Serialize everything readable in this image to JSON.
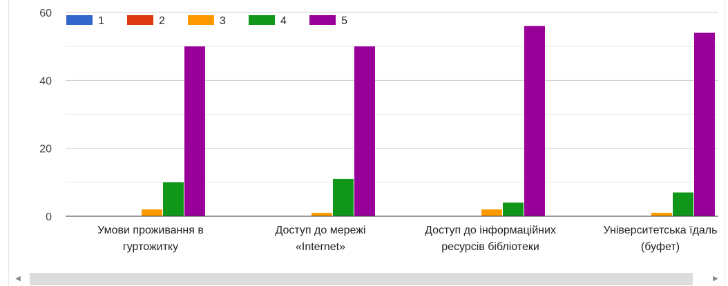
{
  "chart_data": {
    "type": "bar",
    "categories": [
      [
        "Умови проживання в",
        "гуртожитку"
      ],
      [
        "Доступ до мережі",
        "«Internet»"
      ],
      [
        "Доступ до інформаційних",
        "ресурсів бібліотеки"
      ],
      [
        "Університетська їдаль",
        "(буфет)"
      ]
    ],
    "series": [
      {
        "name": "1",
        "color": "#3366cc",
        "values": [
          0,
          0,
          0,
          0
        ]
      },
      {
        "name": "2",
        "color": "#dc3912",
        "values": [
          0,
          0,
          0,
          0
        ]
      },
      {
        "name": "3",
        "color": "#ff9900",
        "values": [
          2,
          1,
          2,
          1
        ]
      },
      {
        "name": "4",
        "color": "#109618",
        "values": [
          10,
          11,
          4,
          7
        ]
      },
      {
        "name": "5",
        "color": "#990099",
        "values": [
          50,
          50,
          56,
          54
        ]
      }
    ],
    "y_ticks": [
      0,
      20,
      40,
      60
    ],
    "ylim": [
      0,
      60
    ],
    "grid": true,
    "legend_position": "top-left",
    "title": "",
    "xlabel": "",
    "ylabel": ""
  },
  "scrollbar": {
    "left_arrow": "◀",
    "right_arrow": "▶"
  }
}
